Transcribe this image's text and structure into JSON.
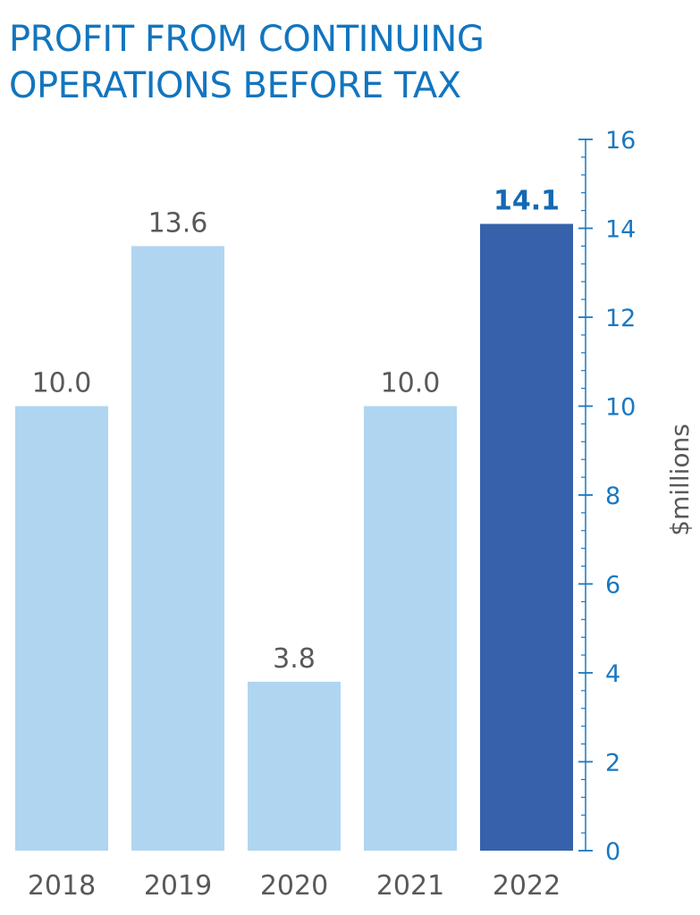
{
  "title_lines": [
    "PROFIT FROM CONTINUING",
    "OPERATIONS BEFORE TAX"
  ],
  "colors": {
    "title": "#1275bf",
    "bar": "#b0d5f0",
    "bar_highlight": "#3762ab",
    "axis": "#1a78c2",
    "text": "#58595b"
  },
  "chart_data": {
    "type": "bar",
    "title": "PROFIT FROM CONTINUING OPERATIONS BEFORE TAX",
    "categories": [
      "2018",
      "2019",
      "2020",
      "2021",
      "2022"
    ],
    "values": [
      10.0,
      13.6,
      3.8,
      10.0,
      14.1
    ],
    "value_labels": [
      "10.0",
      "13.6",
      "3.8",
      "10.0",
      "14.1"
    ],
    "highlight_index": 4,
    "ylabel": "$millions",
    "xlabel": "",
    "ylim": [
      0,
      16
    ],
    "y_ticks": [
      "0",
      "2",
      "4",
      "6",
      "8",
      "10",
      "12",
      "14",
      "16"
    ],
    "axis_position": "right",
    "grid": false,
    "legend": "none"
  }
}
